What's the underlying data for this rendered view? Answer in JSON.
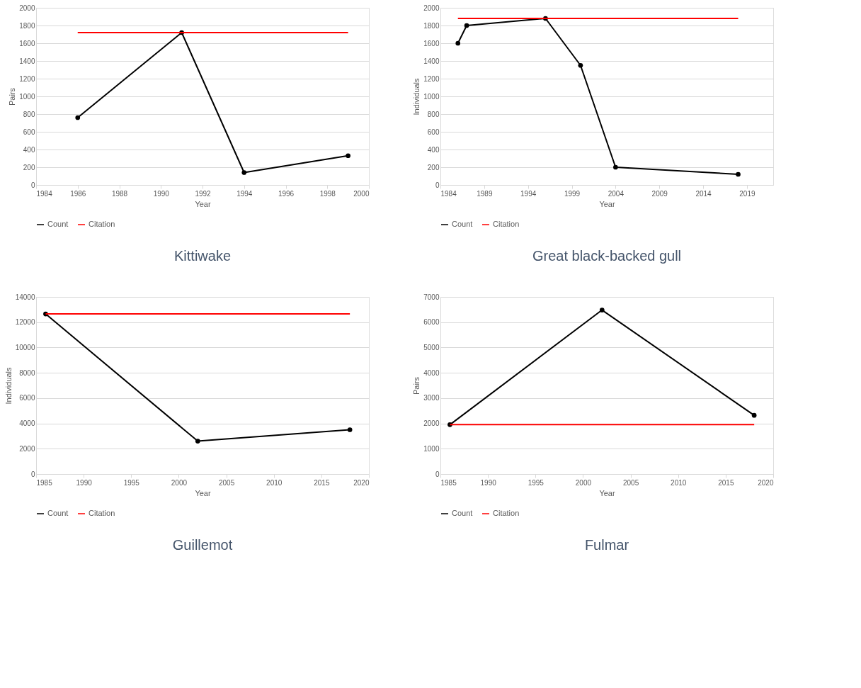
{
  "chart_data": [
    {
      "type": "line",
      "title": "Kittiwake",
      "xlabel": "Year",
      "ylabel": "Pairs",
      "xlim": [
        1984,
        2000
      ],
      "xticks": [
        1984,
        1986,
        1988,
        1990,
        1992,
        1994,
        1996,
        1998,
        2000
      ],
      "ylim": [
        0,
        2000
      ],
      "yticks": [
        0,
        200,
        400,
        600,
        800,
        1000,
        1200,
        1400,
        1600,
        1800,
        2000
      ],
      "grid": "y",
      "legend": "bottom",
      "series": [
        {
          "name": "Count",
          "color": "#000000",
          "marker": "circle",
          "x": [
            1986,
            1991,
            1994,
            1999
          ],
          "values": [
            760,
            1720,
            140,
            330
          ]
        },
        {
          "name": "Citation",
          "color": "#ff0000",
          "marker": "none",
          "x": [
            1986,
            1999
          ],
          "values": [
            1720,
            1720
          ]
        }
      ]
    },
    {
      "type": "line",
      "title": "Great black-backed gull",
      "xlabel": "Year",
      "ylabel": "Individuals",
      "xlim": [
        1984,
        2022
      ],
      "xticks": [
        1984,
        1989,
        1994,
        1999,
        2004,
        2009,
        2014,
        2019
      ],
      "ylim": [
        0,
        2000
      ],
      "yticks": [
        0,
        200,
        400,
        600,
        800,
        1000,
        1200,
        1400,
        1600,
        1800,
        2000
      ],
      "grid": "y",
      "legend": "bottom",
      "series": [
        {
          "name": "Count",
          "color": "#000000",
          "marker": "circle",
          "x": [
            1986,
            1987,
            1996,
            2000,
            2004,
            2018
          ],
          "values": [
            1600,
            1800,
            1880,
            1350,
            200,
            120
          ]
        },
        {
          "name": "Citation",
          "color": "#ff0000",
          "marker": "none",
          "x": [
            1986,
            2018
          ],
          "values": [
            1880,
            1880
          ]
        }
      ]
    },
    {
      "type": "line",
      "title": "Guillemot",
      "xlabel": "Year",
      "ylabel": "Individuals",
      "xlim": [
        1985,
        2020
      ],
      "xticks": [
        1985,
        1990,
        1995,
        2000,
        2005,
        2010,
        2015,
        2020
      ],
      "ylim": [
        0,
        14000
      ],
      "yticks": [
        0,
        2000,
        4000,
        6000,
        8000,
        10000,
        12000,
        14000
      ],
      "grid": "y",
      "legend": "bottom",
      "series": [
        {
          "name": "Count",
          "color": "#000000",
          "marker": "circle",
          "x": [
            1986,
            2002,
            2018
          ],
          "values": [
            12650,
            2600,
            3500
          ]
        },
        {
          "name": "Citation",
          "color": "#ff0000",
          "marker": "none",
          "x": [
            1986,
            2018
          ],
          "values": [
            12650,
            12650
          ]
        }
      ]
    },
    {
      "type": "line",
      "title": "Fulmar",
      "xlabel": "Year",
      "ylabel": "Pairs",
      "xlim": [
        1985,
        2020
      ],
      "xticks": [
        1985,
        1990,
        1995,
        2000,
        2005,
        2010,
        2015,
        2020
      ],
      "ylim": [
        0,
        7000
      ],
      "yticks": [
        0,
        1000,
        2000,
        3000,
        4000,
        5000,
        6000,
        7000
      ],
      "grid": "y",
      "legend": "bottom",
      "series": [
        {
          "name": "Count",
          "color": "#000000",
          "marker": "circle",
          "x": [
            1986,
            2002,
            2018
          ],
          "values": [
            1950,
            6480,
            2320
          ]
        },
        {
          "name": "Citation",
          "color": "#ff0000",
          "marker": "none",
          "x": [
            1986,
            2018
          ],
          "values": [
            1950,
            1950
          ]
        }
      ]
    }
  ]
}
